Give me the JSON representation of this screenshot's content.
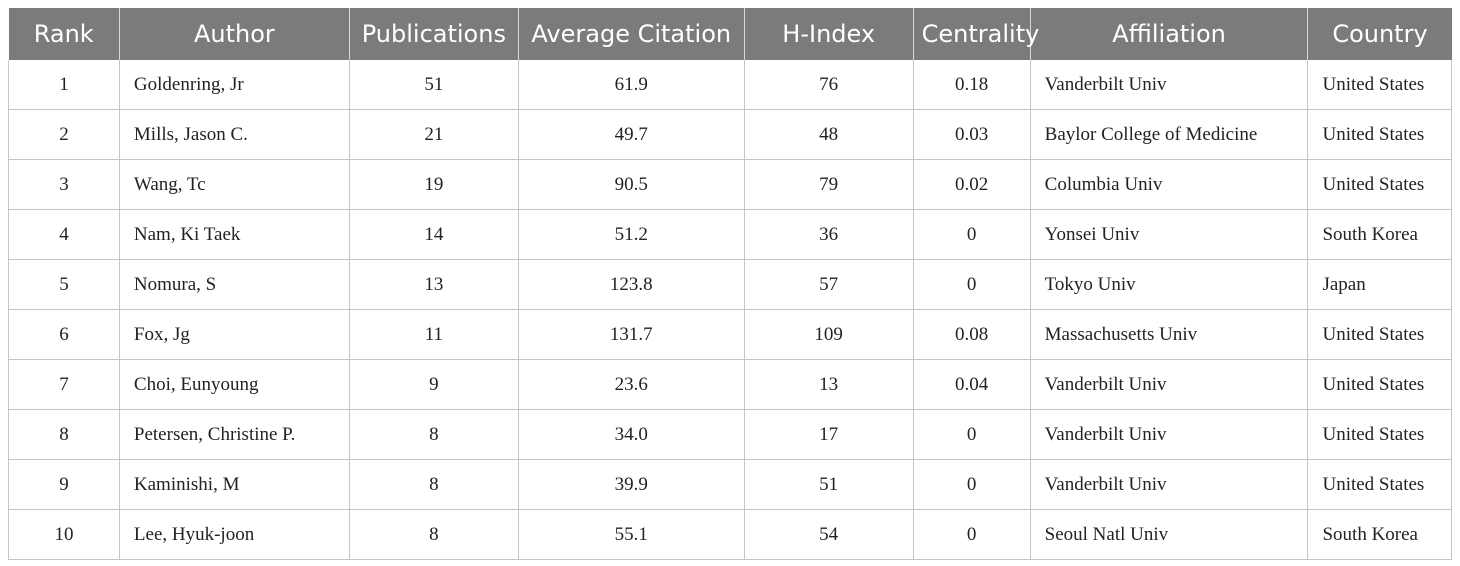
{
  "table": {
    "headers": [
      "Rank",
      "Author",
      "Publications",
      "Average Citation",
      "H-Index",
      "Centrality",
      "Affiliation",
      "Country"
    ],
    "rows": [
      [
        "1",
        "Goldenring, Jr",
        "51",
        "61.9",
        "76",
        "0.18",
        "Vanderbilt Univ",
        "United States"
      ],
      [
        "2",
        "Mills, Jason C.",
        "21",
        "49.7",
        "48",
        "0.03",
        "Baylor College of Medicine",
        "United States"
      ],
      [
        "3",
        "Wang, Tc",
        "19",
        "90.5",
        "79",
        "0.02",
        "Columbia Univ",
        "United States"
      ],
      [
        "4",
        "Nam, Ki Taek",
        "14",
        "51.2",
        "36",
        "0",
        "Yonsei Univ",
        "South Korea"
      ],
      [
        "5",
        "Nomura, S",
        "13",
        "123.8",
        "57",
        "0",
        "Tokyo Univ",
        "Japan"
      ],
      [
        "6",
        "Fox, Jg",
        "11",
        "131.7",
        "109",
        "0.08",
        "Massachusetts Univ",
        "United States"
      ],
      [
        "7",
        "Choi, Eunyoung",
        "9",
        "23.6",
        "13",
        "0.04",
        "Vanderbilt Univ",
        "United States"
      ],
      [
        "8",
        "Petersen, Christine P.",
        "8",
        "34.0",
        "17",
        "0",
        "Vanderbilt Univ",
        "United States"
      ],
      [
        "9",
        "Kaminishi, M",
        "8",
        "39.9",
        "51",
        "0",
        "Vanderbilt Univ",
        "United States"
      ],
      [
        "10",
        "Lee, Hyuk-joon",
        "8",
        "55.1",
        "54",
        "0",
        "Seoul Natl Univ",
        "South Korea"
      ]
    ]
  },
  "colors": {
    "header_bg": "#7b7b7b",
    "header_text": "#ffffff",
    "grid": "#c6c6c6",
    "body_text": "#222222"
  }
}
